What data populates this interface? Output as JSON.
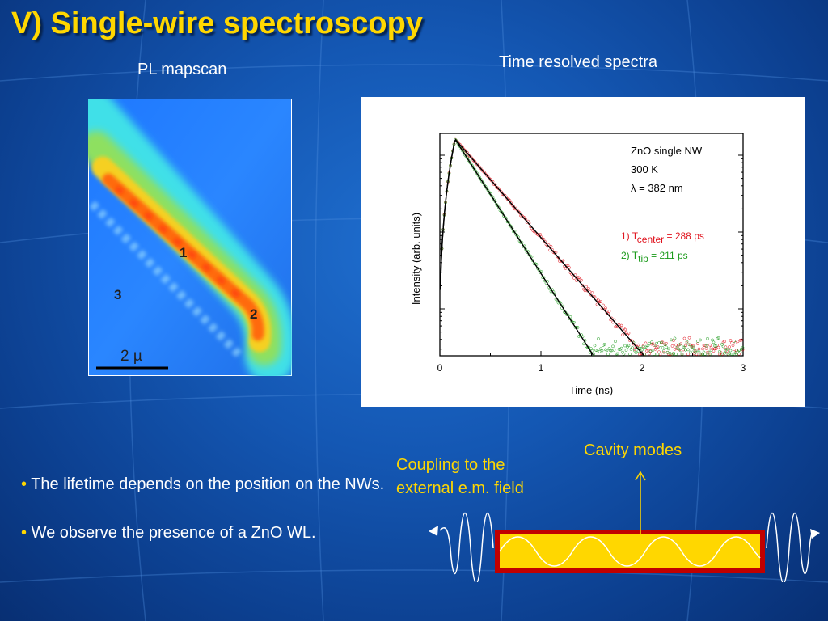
{
  "title": "V) Single-wire spectroscopy",
  "pl_mapscan": {
    "caption": "PL mapscan",
    "labels": [
      "1",
      "2",
      "3"
    ],
    "scalebar": "2 µ"
  },
  "time_resolved": {
    "caption": "Time resolved spectra"
  },
  "chart_data": {
    "type": "scatter",
    "xlabel": "Time (ns)",
    "ylabel": "Intensity (arb. units)",
    "xlim": [
      0,
      3
    ],
    "x_ticks": [
      0,
      1,
      2,
      3
    ],
    "y_scale": "log",
    "grid": false,
    "annotations": [
      "ZnO single NW",
      "300 K",
      "λ = 382 nm"
    ],
    "legend": [
      {
        "prefix": "1) T",
        "sub": "center",
        "suffix": " = 288 ps",
        "color": "#e0141e"
      },
      {
        "prefix": "2) T",
        "sub": "tip",
        "suffix": " = 211 ps",
        "color": "#1a9a1a"
      }
    ],
    "series": [
      {
        "name": "1) T center = 288 ps",
        "lifetime_ps": 288,
        "color": "#e0141e",
        "peak_time_ns": 0.15
      },
      {
        "name": "2) T tip = 211 ps",
        "lifetime_ps": 211,
        "color": "#1a9a1a",
        "peak_time_ns": 0.15
      }
    ]
  },
  "bullets": [
    "The lifetime depends on the position on the NWs.",
    "We observe the presence of a ZnO WL."
  ],
  "bullet_symbol": "•",
  "cavity": {
    "coupling_label": "Coupling to the external e.m. field",
    "modes_label": "Cavity modes"
  },
  "colors": {
    "title": "#ffd700",
    "label_yellow": "#ffd700",
    "cavity_fill": "#ffd700",
    "cavity_border": "#c00000"
  }
}
